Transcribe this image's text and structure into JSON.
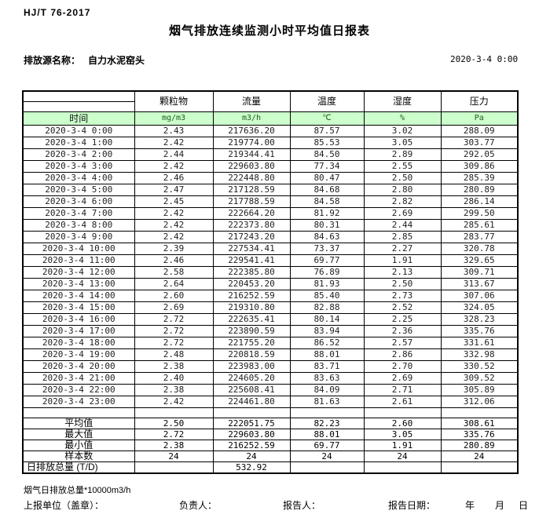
{
  "page": {
    "standard": "HJ/T  76-2017",
    "title": "烟气排放连续监测小时平均值日报表",
    "source_label": "排放源名称：",
    "source_name": "自力水泥窑头",
    "datetime": "2020-3-4 0:00"
  },
  "table": {
    "time_header": "时间",
    "columns": [
      "颗粒物",
      "流量",
      "温度",
      "湿度",
      "压力"
    ],
    "units": [
      "mg/m3",
      "m3/h",
      "℃",
      "%",
      "Pa"
    ],
    "rows": [
      {
        "time": "2020-3-4 0:00",
        "values": [
          "2.43",
          "217636.20",
          "87.57",
          "3.02",
          "288.09"
        ]
      },
      {
        "time": "2020-3-4 1:00",
        "values": [
          "2.42",
          "219774.00",
          "85.53",
          "3.05",
          "303.77"
        ]
      },
      {
        "time": "2020-3-4 2:00",
        "values": [
          "2.44",
          "219344.41",
          "84.50",
          "2.89",
          "292.05"
        ]
      },
      {
        "time": "2020-3-4 3:00",
        "values": [
          "2.42",
          "229603.80",
          "77.34",
          "2.55",
          "309.86"
        ]
      },
      {
        "time": "2020-3-4 4:00",
        "values": [
          "2.46",
          "222448.80",
          "80.47",
          "2.50",
          "285.39"
        ]
      },
      {
        "time": "2020-3-4 5:00",
        "values": [
          "2.47",
          "217128.59",
          "84.68",
          "2.80",
          "280.89"
        ]
      },
      {
        "time": "2020-3-4 6:00",
        "values": [
          "2.45",
          "217788.59",
          "84.58",
          "2.82",
          "286.14"
        ]
      },
      {
        "time": "2020-3-4 7:00",
        "values": [
          "2.42",
          "222664.20",
          "81.92",
          "2.69",
          "299.50"
        ]
      },
      {
        "time": "2020-3-4 8:00",
        "values": [
          "2.42",
          "222373.80",
          "80.31",
          "2.44",
          "285.61"
        ]
      },
      {
        "time": "2020-3-4 9:00",
        "values": [
          "2.42",
          "217243.20",
          "84.63",
          "2.85",
          "283.77"
        ]
      },
      {
        "time": "2020-3-4 10:00",
        "values": [
          "2.39",
          "227534.41",
          "73.37",
          "2.27",
          "320.78"
        ]
      },
      {
        "time": "2020-3-4 11:00",
        "values": [
          "2.46",
          "229541.41",
          "69.77",
          "1.91",
          "329.65"
        ]
      },
      {
        "time": "2020-3-4 12:00",
        "values": [
          "2.58",
          "222385.80",
          "76.89",
          "2.13",
          "309.71"
        ]
      },
      {
        "time": "2020-3-4 13:00",
        "values": [
          "2.64",
          "220453.20",
          "81.93",
          "2.50",
          "313.67"
        ]
      },
      {
        "time": "2020-3-4 14:00",
        "values": [
          "2.60",
          "216252.59",
          "85.40",
          "2.73",
          "307.06"
        ]
      },
      {
        "time": "2020-3-4 15:00",
        "values": [
          "2.69",
          "219310.80",
          "82.88",
          "2.52",
          "324.05"
        ]
      },
      {
        "time": "2020-3-4 16:00",
        "values": [
          "2.72",
          "222635.41",
          "80.14",
          "2.25",
          "328.23"
        ]
      },
      {
        "time": "2020-3-4 17:00",
        "values": [
          "2.72",
          "223890.59",
          "83.94",
          "2.36",
          "335.76"
        ]
      },
      {
        "time": "2020-3-4 18:00",
        "values": [
          "2.72",
          "221755.20",
          "86.52",
          "2.57",
          "331.61"
        ]
      },
      {
        "time": "2020-3-4 19:00",
        "values": [
          "2.48",
          "220818.59",
          "88.01",
          "2.86",
          "332.98"
        ]
      },
      {
        "time": "2020-3-4 20:00",
        "values": [
          "2.38",
          "223983.00",
          "83.71",
          "2.70",
          "330.52"
        ]
      },
      {
        "time": "2020-3-4 21:00",
        "values": [
          "2.40",
          "224605.20",
          "83.63",
          "2.69",
          "309.52"
        ]
      },
      {
        "time": "2020-3-4 22:00",
        "values": [
          "2.38",
          "225608.41",
          "84.09",
          "2.71",
          "305.89"
        ]
      },
      {
        "time": "2020-3-4 23:00",
        "values": [
          "2.42",
          "224461.80",
          "81.63",
          "2.61",
          "312.06"
        ]
      }
    ],
    "summary": [
      {
        "id": "spacer",
        "label": "",
        "values": [
          "",
          "",
          "",
          "",
          ""
        ]
      },
      {
        "id": "avg",
        "label": "平均值",
        "values": [
          "2.50",
          "222051.75",
          "82.23",
          "2.60",
          "308.61"
        ]
      },
      {
        "id": "max",
        "label": "最大值",
        "values": [
          "2.72",
          "229603.80",
          "88.01",
          "3.05",
          "335.76"
        ]
      },
      {
        "id": "min",
        "label": "最小值",
        "values": [
          "2.38",
          "216252.59",
          "69.77",
          "1.91",
          "280.89"
        ]
      },
      {
        "id": "count",
        "label": "样本数",
        "values": [
          "24",
          "24",
          "24",
          "24",
          "24"
        ]
      },
      {
        "id": "daily_total",
        "label": "日排放总量 (T/D)",
        "values": [
          "",
          "532.92",
          "",
          "",
          ""
        ]
      }
    ]
  },
  "footer": {
    "note": "烟气日排放总量*10000m3/h",
    "unit_label": "上报单位（盖章）：",
    "responsible_label": "负责人：",
    "reporter_label": "报告人：",
    "report_date_label": "报告日期：",
    "year": "年",
    "month": "月",
    "day": "日"
  },
  "colors": {
    "header_green": "#ccffcc",
    "unit_text": "#1c5c1c",
    "border": "#000000"
  }
}
